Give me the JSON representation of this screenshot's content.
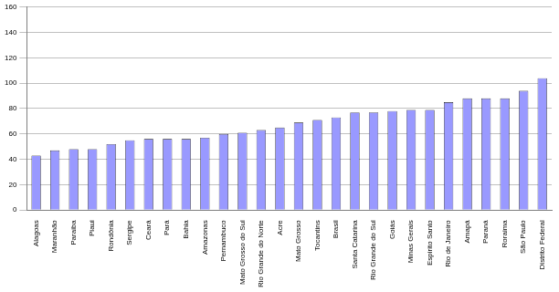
{
  "chart_data": {
    "type": "bar",
    "categories": [
      "Alagoas",
      "Maranhão",
      "Paraiba",
      "Piaui",
      "Rondônia",
      "Sergipe",
      "Ceará",
      "Pará",
      "Bahia",
      "Amazonas",
      "Pernambuco",
      "Mato Grosso do Sul",
      "Rio Grande do Norte",
      "Acre",
      "Mato Grosso",
      "Tocantins",
      "Brasil",
      "Santa Catarina",
      "Rio Grande do Sul",
      "Goiás",
      "Minas Gerais",
      "Espirito Santo",
      "Rio de Janeiro",
      "Amapá",
      "Paraná",
      "Roraima",
      "São Paulo",
      "Distrito Federal"
    ],
    "values": [
      43,
      47,
      48,
      48,
      52,
      55,
      56,
      56,
      56,
      57,
      60,
      61,
      63,
      65,
      69,
      71,
      73,
      77,
      77,
      78,
      79,
      79,
      85,
      88,
      88,
      88,
      94,
      104
    ],
    "color": "#9999ff",
    "ylim": [
      0,
      160
    ],
    "yticks": [
      0,
      20,
      40,
      60,
      80,
      100,
      120,
      140,
      160
    ],
    "grid": true
  }
}
